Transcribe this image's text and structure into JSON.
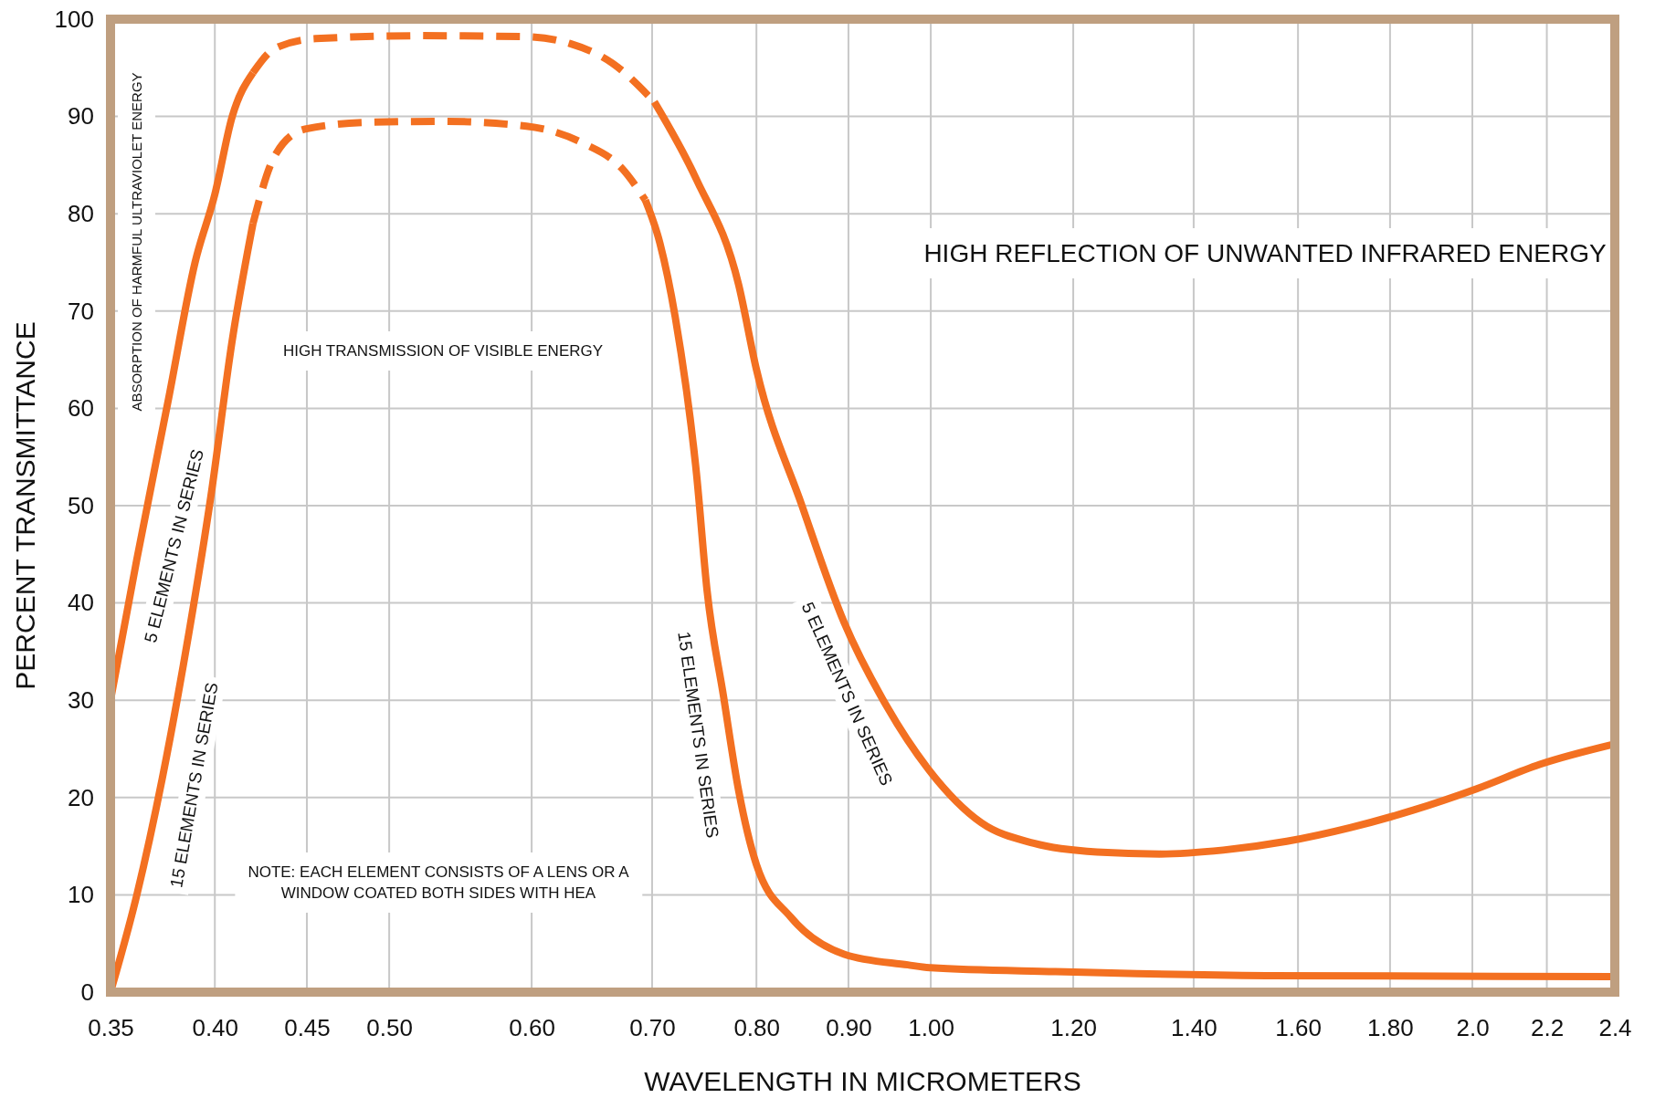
{
  "chart_data": {
    "type": "line",
    "xlabel": "WAVELENGTH IN MICROMETERS",
    "ylabel": "PERCENT TRANSMITTANCE",
    "log": "x",
    "xlim": [
      0.35,
      2.4
    ],
    "ylim": [
      0,
      100
    ],
    "xticks": [
      {
        "value": 0.35,
        "label": "0.35"
      },
      {
        "value": 0.4,
        "label": "0.40"
      },
      {
        "value": 0.45,
        "label": "0.45"
      },
      {
        "value": 0.5,
        "label": "0.50"
      },
      {
        "value": 0.6,
        "label": "0.60"
      },
      {
        "value": 0.7,
        "label": "0.70"
      },
      {
        "value": 0.8,
        "label": "0.80"
      },
      {
        "value": 0.9,
        "label": "0.90"
      },
      {
        "value": 1.0,
        "label": "1.00"
      },
      {
        "value": 1.2,
        "label": "1.20"
      },
      {
        "value": 1.4,
        "label": "1.40"
      },
      {
        "value": 1.6,
        "label": "1.60"
      },
      {
        "value": 1.8,
        "label": "1.80"
      },
      {
        "value": 2.0,
        "label": "2.0"
      },
      {
        "value": 2.2,
        "label": "2.2"
      },
      {
        "value": 2.4,
        "label": "2.4"
      }
    ],
    "yticks": [
      0,
      10,
      20,
      30,
      40,
      50,
      60,
      70,
      80,
      90,
      100
    ],
    "grid": true,
    "series": [
      {
        "name": "5 ELEMENTS IN SERIES",
        "color": "#f37021",
        "line_style": "solid",
        "x": [
          0.35,
          0.362,
          0.377,
          0.39,
          0.4,
          0.409,
          0.42,
          0.55,
          0.702,
          0.741,
          0.782,
          0.8,
          0.848,
          0.895,
          0.945,
          0.997,
          1.067,
          1.141,
          1.237,
          1.341,
          1.454,
          1.577,
          1.71,
          1.854,
          2.011,
          2.18,
          2.4
        ],
        "values": [
          30,
          44.5,
          61,
          75,
          82,
          90,
          94.5,
          null,
          91.5,
          83.5,
          72.7,
          64,
          50,
          38,
          29.4,
          22.9,
          17.4,
          15.3,
          14.4,
          14.2,
          14.6,
          15.5,
          16.9,
          18.7,
          20.9,
          23.4,
          25.5
        ]
      },
      {
        "color": "#f37021",
        "line_style": "dashed",
        "x": [
          0.42,
          0.432,
          0.455,
          0.521,
          0.596,
          0.63,
          0.665,
          0.702
        ],
        "values": [
          94.5,
          97,
          98,
          98.3,
          98.2,
          97.5,
          95.5,
          91.5
        ]
      },
      {
        "name": "15 ELEMENTS IN SERIES",
        "color": "#f37021",
        "line_style": "solid",
        "x": [
          0.35,
          0.362,
          0.374,
          0.387,
          0.398,
          0.409,
          0.42,
          0.55,
          0.694,
          0.707,
          0.721,
          0.741,
          0.751,
          0.767,
          0.782,
          0.8,
          0.836,
          0.895,
          0.971,
          1.0,
          1.173,
          1.536,
          2.4
        ],
        "values": [
          0,
          10,
          22,
          37,
          51,
          67,
          79,
          null,
          81.4,
          77,
          69.4,
          53.2,
          41.3,
          30.4,
          20.7,
          13.1,
          7.7,
          3.9,
          2.8,
          2.5,
          2.1,
          1.7,
          1.6
        ]
      },
      {
        "color": "#f37021",
        "line_style": "dashed",
        "x": [
          0.42,
          0.432,
          0.449,
          0.487,
          0.536,
          0.596,
          0.64,
          0.674,
          0.694
        ],
        "values": [
          79,
          86,
          88.7,
          89.4,
          89.5,
          89,
          87.3,
          84.6,
          81.4
        ]
      }
    ],
    "annotations": [
      "HIGH REFLECTION OF UNWANTED INFRARED ENERGY",
      "HIGH TRANSMISSION OF VISIBLE ENERGY",
      "ABSORPTION OF HARMFUL ULTRAVIOLET ENERGY",
      "NOTE:  EACH ELEMENT CONSISTS OF A LENS OR A\nWINDOW COATED BOTH SIDES WITH HEA"
    ]
  }
}
